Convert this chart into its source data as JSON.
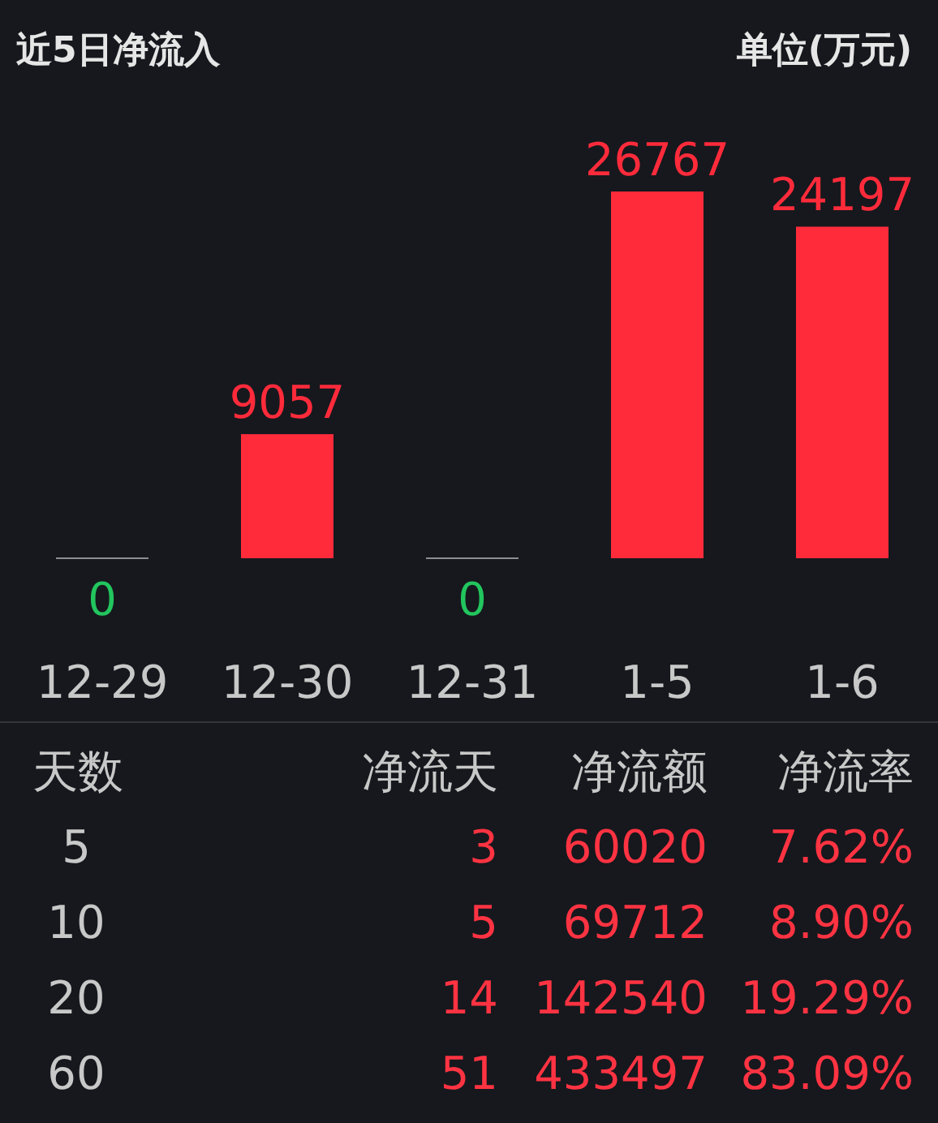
{
  "chart_data": [
    {
      "type": "bar",
      "title": "近5日净流入",
      "subtitle": "单位(万元)",
      "categories": [
        "12-29",
        "12-30",
        "12-31",
        "1-5",
        "1-6"
      ],
      "values": [
        0,
        9057,
        0,
        26767,
        24197
      ],
      "colors": [
        "#8a8d93",
        "#ff2b3b",
        "#8a8d93",
        "#ff2b3b",
        "#ff2b3b"
      ],
      "data_labels": true
    },
    {
      "type": "other",
      "annotations": [
        "天数",
        "净流天",
        "净流额",
        "净流率",
        "5",
        "3",
        "60020",
        "7.62%",
        "10",
        "5",
        "69712",
        "8.90%",
        "20",
        "14",
        "142540",
        "19.29%",
        "60",
        "51",
        "433497",
        "83.09%"
      ]
    }
  ]
}
